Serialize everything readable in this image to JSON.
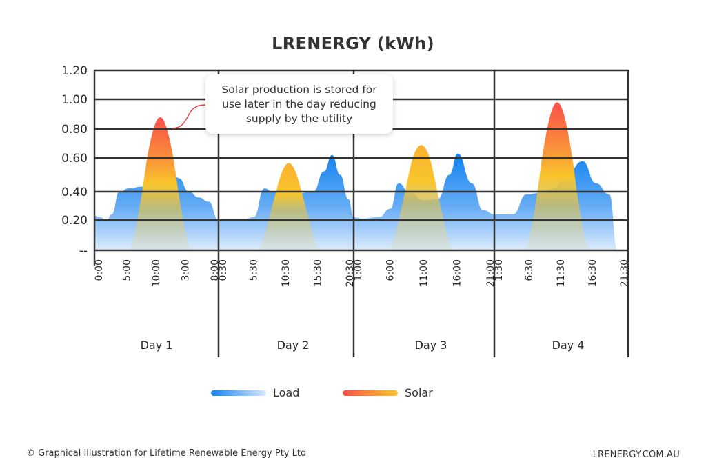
{
  "chart_data": {
    "type": "area",
    "title": "LRENERGY (kWh)",
    "xlabel": "",
    "ylabel": "",
    "y_ticks": [
      {
        "value": 1.2,
        "label": "1.20"
      },
      {
        "value": 1.0,
        "label": "1.00"
      },
      {
        "value": 0.8,
        "label": "0.80"
      },
      {
        "value": 0.6,
        "label": "0.60"
      },
      {
        "value": 0.4,
        "label": "0.40"
      },
      {
        "value": 0.2,
        "label": "0.20"
      },
      {
        "value": 0.0,
        "label": "--"
      }
    ],
    "ylim": [
      0,
      1.2
    ],
    "grid": true,
    "legend_position": "bottom-center",
    "days": [
      {
        "label": "Day 1",
        "ticks": [
          "0:00",
          "5:00",
          "10:00",
          "3:00",
          "8:00"
        ]
      },
      {
        "label": "Day 2",
        "ticks": [
          "0:30",
          "5:30",
          "10:30",
          "15:30",
          "20:30"
        ]
      },
      {
        "label": "Day 3",
        "ticks": [
          "1:00",
          "6:00",
          "11:00",
          "16:00",
          "21:00"
        ]
      },
      {
        "label": "Day 4",
        "ticks": [
          "1:30",
          "6:30",
          "11:30",
          "16:30",
          "21:30"
        ]
      }
    ],
    "series": [
      {
        "name": "Load",
        "color_start": "#1183f0",
        "color_end": "#d8eafc",
        "points": [
          [
            0.0,
            0.23
          ],
          [
            0.04,
            0.22
          ],
          [
            0.1,
            0.2
          ],
          [
            0.14,
            0.24
          ],
          [
            0.2,
            0.4
          ],
          [
            0.28,
            0.42
          ],
          [
            0.38,
            0.43
          ],
          [
            0.46,
            0.46
          ],
          [
            0.56,
            0.5
          ],
          [
            0.62,
            0.53
          ],
          [
            0.68,
            0.48
          ],
          [
            0.76,
            0.4
          ],
          [
            0.84,
            0.36
          ],
          [
            0.92,
            0.33
          ],
          [
            1.0,
            0.2
          ],
          [
            1.06,
            0.2
          ],
          [
            1.18,
            0.2
          ],
          [
            1.26,
            0.22
          ],
          [
            1.34,
            0.42
          ],
          [
            1.4,
            0.4
          ],
          [
            1.5,
            0.39
          ],
          [
            1.6,
            0.39
          ],
          [
            1.7,
            0.4
          ],
          [
            1.78,
            0.52
          ],
          [
            1.84,
            0.62
          ],
          [
            1.9,
            0.5
          ],
          [
            1.96,
            0.35
          ],
          [
            2.0,
            0.22
          ],
          [
            2.06,
            0.21
          ],
          [
            2.18,
            0.22
          ],
          [
            2.26,
            0.28
          ],
          [
            2.32,
            0.45
          ],
          [
            2.4,
            0.39
          ],
          [
            2.5,
            0.34
          ],
          [
            2.6,
            0.35
          ],
          [
            2.68,
            0.5
          ],
          [
            2.74,
            0.63
          ],
          [
            2.84,
            0.45
          ],
          [
            2.92,
            0.27
          ],
          [
            3.0,
            0.24
          ],
          [
            3.08,
            0.24
          ],
          [
            3.14,
            0.24
          ],
          [
            3.24,
            0.38
          ],
          [
            3.34,
            0.39
          ],
          [
            3.44,
            0.42
          ],
          [
            3.54,
            0.5
          ],
          [
            3.66,
            0.58
          ],
          [
            3.76,
            0.45
          ],
          [
            3.86,
            0.38
          ],
          [
            3.92,
            0.0
          ]
        ]
      },
      {
        "name": "Solar",
        "color_start": "#f9504a",
        "color_end": "#f9c62c",
        "peaks": [
          {
            "day": 1,
            "center": 0.53,
            "half_width": 0.25,
            "peak": 0.88
          },
          {
            "day": 2,
            "center": 1.52,
            "half_width": 0.23,
            "peak": 0.57
          },
          {
            "day": 3,
            "center": 2.48,
            "half_width": 0.23,
            "peak": 0.69
          },
          {
            "day": 4,
            "center": 3.47,
            "half_width": 0.24,
            "peak": 0.98
          }
        ]
      }
    ],
    "annotation": {
      "text": "Solar production is stored for use later in the day reducing supply by the utility",
      "points_to": "Day 1 solar peak"
    }
  },
  "legend": [
    {
      "label": "Load"
    },
    {
      "label": "Solar"
    }
  ],
  "footer": {
    "copyright": "© Graphical Illustration for Lifetime Renewable Energy Pty Ltd",
    "website": "LRENERGY.COM.AU"
  },
  "colors": {
    "grid": "#333333",
    "load_top": "#1183f0",
    "load_bottom": "#d8eafc",
    "solar_top": "#f9504a",
    "solar_mid": "#f9c62c",
    "callout_line": "#e8434a"
  }
}
